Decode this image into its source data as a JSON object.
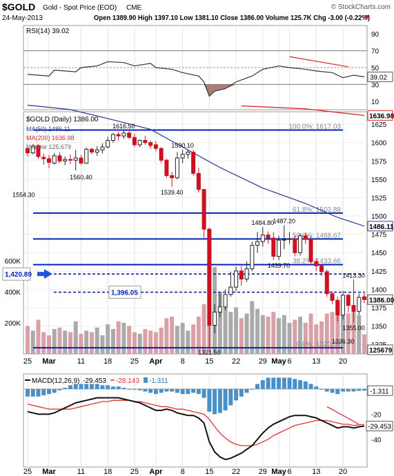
{
  "header": {
    "symbol": "$GOLD",
    "description": "Gold - Spot Price (EOD)",
    "exchange": "CME",
    "copyright": "© StockCharts.com",
    "date": "24-May-2013",
    "ohlc_line": "Open 1389.90  High 1397.10  Low 1381.10  Close 1386.00  Volume 125.7K  Chg -3.00 (-0.22%)",
    "chg_icon": "down-triangle-icon"
  },
  "colors": {
    "up": "#222222",
    "down": "#cc1122",
    "ma50": "#334499",
    "ma200": "#dd2222",
    "fib": "#0022bb",
    "macd_hist": "#4a90c8",
    "rsi_line": "#333333"
  },
  "chart_data": [
    {
      "type": "line",
      "name": "RSI",
      "legend": "RSI(14) 39.02",
      "last_value_label": "39.02",
      "ylim": [
        0,
        100
      ],
      "y_ticks": [
        10,
        30,
        50,
        70,
        90
      ],
      "ref_lines": [
        30,
        50,
        70
      ],
      "x": [
        "2013-02-25",
        "2013-03-01",
        "2013-03-04",
        "2013-03-08",
        "2013-03-11",
        "2013-03-14",
        "2013-03-18",
        "2013-03-21",
        "2013-03-25",
        "2013-03-28",
        "2013-04-01",
        "2013-04-04",
        "2013-04-08",
        "2013-04-11",
        "2013-04-12",
        "2013-04-15",
        "2013-04-16",
        "2013-04-18",
        "2013-04-22",
        "2013-04-25",
        "2013-04-29",
        "2013-05-02",
        "2013-05-06",
        "2013-05-09",
        "2013-05-13",
        "2013-05-16",
        "2013-05-20",
        "2013-05-22",
        "2013-05-24"
      ],
      "values": [
        42,
        40,
        47,
        45,
        50,
        52,
        57,
        56,
        52,
        55,
        50,
        48,
        44,
        40,
        33,
        16,
        22,
        25,
        33,
        40,
        48,
        52,
        50,
        48,
        46,
        44,
        38,
        41,
        39.02
      ],
      "annotations": [
        "red downtrend line near 50-70"
      ]
    },
    {
      "type": "candlestick",
      "name": "$GOLD (Daily)",
      "legend": "$GOLD (Daily) 1386.00",
      "ylim": [
        1312,
        1642
      ],
      "y_ticks": [
        1325,
        1350,
        1375,
        1400,
        1425,
        1450,
        1475,
        1500,
        1525,
        1550,
        1575,
        1600,
        1625
      ],
      "x_labels": [
        "25",
        "Mar",
        "11",
        "18",
        "25",
        "Apr",
        "8",
        "15",
        "22",
        "29",
        "May",
        "6",
        "13",
        "20"
      ],
      "candles": [
        {
          "d": "2013-02-25",
          "o": 1592,
          "h": 1596,
          "l": 1581,
          "c": 1586
        },
        {
          "d": "2013-02-26",
          "o": 1586,
          "h": 1598,
          "l": 1584,
          "c": 1595
        },
        {
          "d": "2013-02-27",
          "o": 1596,
          "h": 1598,
          "l": 1578,
          "c": 1581
        },
        {
          "d": "2013-02-28",
          "o": 1580,
          "h": 1585,
          "l": 1570,
          "c": 1578
        },
        {
          "d": "2013-03-01",
          "o": 1578,
          "h": 1583,
          "l": 1565,
          "c": 1573
        },
        {
          "d": "2013-03-04",
          "o": 1572,
          "h": 1586,
          "l": 1570,
          "c": 1582
        },
        {
          "d": "2013-03-05",
          "o": 1582,
          "h": 1587,
          "l": 1572,
          "c": 1575
        },
        {
          "d": "2013-03-06",
          "o": 1575,
          "h": 1581,
          "l": 1569,
          "c": 1577
        },
        {
          "d": "2013-03-07",
          "o": 1577,
          "h": 1584,
          "l": 1571,
          "c": 1576
        },
        {
          "d": "2013-03-08",
          "o": 1576,
          "h": 1590,
          "l": 1562,
          "c": 1579
        },
        {
          "d": "2013-03-11",
          "o": 1579,
          "h": 1583,
          "l": 1570,
          "c": 1572
        },
        {
          "d": "2013-03-12",
          "o": 1572,
          "h": 1593,
          "l": 1571,
          "c": 1591
        },
        {
          "d": "2013-03-13",
          "o": 1591,
          "h": 1593,
          "l": 1584,
          "c": 1587
        },
        {
          "d": "2013-03-14",
          "o": 1587,
          "h": 1595,
          "l": 1582,
          "c": 1590
        },
        {
          "d": "2013-03-15",
          "o": 1590,
          "h": 1599,
          "l": 1585,
          "c": 1594
        },
        {
          "d": "2013-03-18",
          "o": 1594,
          "h": 1608,
          "l": 1592,
          "c": 1603
        },
        {
          "d": "2013-03-19",
          "o": 1603,
          "h": 1613,
          "l": 1600,
          "c": 1611
        },
        {
          "d": "2013-03-20",
          "o": 1611,
          "h": 1615,
          "l": 1602,
          "c": 1609
        },
        {
          "d": "2013-03-21",
          "o": 1609,
          "h": 1616.5,
          "l": 1605,
          "c": 1613
        },
        {
          "d": "2013-03-22",
          "o": 1613,
          "h": 1616,
          "l": 1605,
          "c": 1607
        },
        {
          "d": "2013-03-25",
          "o": 1607,
          "h": 1612,
          "l": 1594,
          "c": 1597
        },
        {
          "d": "2013-03-26",
          "o": 1597,
          "h": 1604,
          "l": 1594,
          "c": 1603
        },
        {
          "d": "2013-03-27",
          "o": 1603,
          "h": 1609,
          "l": 1597,
          "c": 1600
        },
        {
          "d": "2013-03-28",
          "o": 1600,
          "h": 1603,
          "l": 1592,
          "c": 1596
        },
        {
          "d": "2013-04-01",
          "o": 1597,
          "h": 1602,
          "l": 1588,
          "c": 1592
        },
        {
          "d": "2013-04-02",
          "o": 1592,
          "h": 1594,
          "l": 1572,
          "c": 1576
        },
        {
          "d": "2013-04-03",
          "o": 1576,
          "h": 1578,
          "l": 1552,
          "c": 1555
        },
        {
          "d": "2013-04-04",
          "o": 1555,
          "h": 1560,
          "l": 1539.4,
          "c": 1552
        },
        {
          "d": "2013-04-05",
          "o": 1552,
          "h": 1587,
          "l": 1550,
          "c": 1579
        },
        {
          "d": "2013-04-08",
          "o": 1579,
          "h": 1590.1,
          "l": 1572,
          "c": 1584
        },
        {
          "d": "2013-04-09",
          "o": 1584,
          "h": 1590,
          "l": 1578,
          "c": 1587
        },
        {
          "d": "2013-04-10",
          "o": 1587,
          "h": 1590,
          "l": 1555,
          "c": 1558
        },
        {
          "d": "2013-04-11",
          "o": 1558,
          "h": 1566,
          "l": 1532,
          "c": 1536
        },
        {
          "d": "2013-04-12",
          "o": 1536,
          "h": 1537,
          "l": 1470,
          "c": 1482
        },
        {
          "d": "2013-04-15",
          "o": 1482,
          "h": 1484,
          "l": 1321.5,
          "c": 1351
        },
        {
          "d": "2013-04-16",
          "o": 1351,
          "h": 1380,
          "l": 1340,
          "c": 1369
        },
        {
          "d": "2013-04-17",
          "o": 1369,
          "h": 1394,
          "l": 1362,
          "c": 1376
        },
        {
          "d": "2013-04-18",
          "o": 1376,
          "h": 1400,
          "l": 1372,
          "c": 1393
        },
        {
          "d": "2013-04-19",
          "o": 1393,
          "h": 1424,
          "l": 1390,
          "c": 1403
        },
        {
          "d": "2013-04-22",
          "o": 1403,
          "h": 1431,
          "l": 1397,
          "c": 1425
        },
        {
          "d": "2013-04-23",
          "o": 1425,
          "h": 1432,
          "l": 1405,
          "c": 1414
        },
        {
          "d": "2013-04-24",
          "o": 1414,
          "h": 1438,
          "l": 1410,
          "c": 1428
        },
        {
          "d": "2013-04-25",
          "o": 1428,
          "h": 1465,
          "l": 1425,
          "c": 1460
        },
        {
          "d": "2013-04-26",
          "o": 1460,
          "h": 1478,
          "l": 1450,
          "c": 1465
        },
        {
          "d": "2013-04-29",
          "o": 1465,
          "h": 1484.8,
          "l": 1458,
          "c": 1474
        },
        {
          "d": "2013-04-30",
          "o": 1474,
          "h": 1479,
          "l": 1462,
          "c": 1470
        },
        {
          "d": "2013-05-01",
          "o": 1470,
          "h": 1478,
          "l": 1440,
          "c": 1445
        },
        {
          "d": "2013-05-02",
          "o": 1445,
          "h": 1473,
          "l": 1439.7,
          "c": 1467
        },
        {
          "d": "2013-05-03",
          "o": 1467,
          "h": 1487.2,
          "l": 1455,
          "c": 1468
        },
        {
          "d": "2013-05-06",
          "o": 1468,
          "h": 1478,
          "l": 1462,
          "c": 1469
        },
        {
          "d": "2013-05-07",
          "o": 1469,
          "h": 1473,
          "l": 1445,
          "c": 1450
        },
        {
          "d": "2013-05-08",
          "o": 1450,
          "h": 1476,
          "l": 1446,
          "c": 1473
        },
        {
          "d": "2013-05-09",
          "o": 1473,
          "h": 1477,
          "l": 1462,
          "c": 1468
        },
        {
          "d": "2013-05-10",
          "o": 1468,
          "h": 1472,
          "l": 1435,
          "c": 1438
        },
        {
          "d": "2013-05-13",
          "o": 1438,
          "h": 1442,
          "l": 1425,
          "c": 1432
        },
        {
          "d": "2013-05-14",
          "o": 1432,
          "h": 1435,
          "l": 1418,
          "c": 1424
        },
        {
          "d": "2013-05-15",
          "o": 1424,
          "h": 1427,
          "l": 1390,
          "c": 1394
        },
        {
          "d": "2013-05-16",
          "o": 1394,
          "h": 1397,
          "l": 1380,
          "c": 1385
        },
        {
          "d": "2013-05-17",
          "o": 1385,
          "h": 1390,
          "l": 1356,
          "c": 1365
        },
        {
          "d": "2013-05-20",
          "o": 1365,
          "h": 1398,
          "l": 1359,
          "c": 1392
        },
        {
          "d": "2013-05-21",
          "o": 1392,
          "h": 1394,
          "l": 1368,
          "c": 1378
        },
        {
          "d": "2013-05-22",
          "o": 1378,
          "h": 1413.3,
          "l": 1355,
          "c": 1370
        },
        {
          "d": "2013-05-23",
          "o": 1370,
          "h": 1394,
          "l": 1365,
          "c": 1389
        },
        {
          "d": "2013-05-24",
          "o": 1389.9,
          "h": 1397.1,
          "l": 1381.1,
          "c": 1386
        }
      ],
      "ma50": {
        "legend": "MA(50) 1486.11",
        "label": "1486.11",
        "points": [
          [
            0,
            1651
          ],
          [
            8,
            1645
          ],
          [
            16,
            1631
          ],
          [
            23,
            1618
          ],
          [
            30,
            1590
          ],
          [
            36,
            1566
          ],
          [
            44,
            1538
          ],
          [
            52,
            1517
          ],
          [
            58,
            1498
          ],
          [
            63,
            1486.11
          ]
        ]
      },
      "ma200": {
        "legend": "MA(200) 1636.98",
        "label": "1636.98",
        "points": [
          [
            40,
            1650
          ],
          [
            52,
            1646
          ],
          [
            63,
            1636.98
          ]
        ]
      },
      "fib_levels": [
        {
          "label": "100.0%: 1617.03",
          "value": 1617.03
        },
        {
          "label": "61.8%: 1503.88",
          "value": 1503.88
        },
        {
          "label": "50.0%: 1468.67",
          "value": 1468.67
        },
        {
          "label": "38.2%: 1433.66",
          "value": 1433.66
        },
        {
          "label": "0.0%: 1320.34",
          "value": 1320.34
        }
      ],
      "dashed_levels": [
        {
          "label": "1,420.89",
          "value": 1420.89,
          "arrow": true
        },
        {
          "label": "1,396.05",
          "value": 1396.05,
          "arrow": false
        }
      ],
      "price_labels": [
        {
          "text": "1616.50",
          "value": 1616.5
        },
        {
          "text": "1590.10",
          "value": 1590.1
        },
        {
          "text": "1554.30",
          "value": 1554.3
        },
        {
          "text": "1560.40",
          "value": 1560.4
        },
        {
          "text": "1539.40",
          "value": 1539.4
        },
        {
          "text": "1484.80",
          "value": 1484.8
        },
        {
          "text": "1487.20",
          "value": 1487.2
        },
        {
          "text": "1439.70",
          "value": 1439.7
        },
        {
          "text": "1413.30",
          "value": 1413.3
        },
        {
          "text": "1355.00",
          "value": 1355.0
        },
        {
          "text": "1321.50",
          "value": 1321.5
        },
        {
          "text": "1336.30",
          "value": 1336.3
        }
      ],
      "last_price_label": "1386.00",
      "volume": {
        "legend": "Volume 125,679",
        "last_label": "125679",
        "y_ticks": [
          "200K",
          "400K",
          "600K"
        ],
        "ylim": [
          0,
          800000
        ],
        "values": [
          180,
          150,
          220,
          140,
          120,
          160,
          170,
          150,
          140,
          210,
          130,
          150,
          140,
          170,
          120,
          190,
          160,
          210,
          200,
          180,
          140,
          130,
          160,
          150,
          140,
          170,
          230,
          240,
          180,
          200,
          150,
          190,
          240,
          320,
          760,
          560,
          400,
          300,
          270,
          300,
          230,
          260,
          340,
          290,
          250,
          240,
          270,
          230,
          250,
          200,
          220,
          240,
          200,
          260,
          190,
          210,
          260,
          270,
          330,
          310,
          260,
          300,
          250,
          126
        ]
      }
    },
    {
      "type": "line",
      "name": "MACD",
      "legend": "MACD(12,26,9)",
      "macd_value": "-29.453",
      "signal_value": "-28.143",
      "hist_value": "-1.311",
      "ylim": [
        -62,
        12
      ],
      "y_ticks": [
        -40,
        -20
      ],
      "hist_label": "-1.311",
      "macd_label": "-29.453",
      "macd": [
        -18,
        -19,
        -20,
        -20,
        -20,
        -19,
        -17,
        -15,
        -13,
        -11,
        -10,
        -9,
        -8,
        -7,
        -7,
        -7,
        -7,
        -7,
        -8,
        -9,
        -10,
        -11,
        -13,
        -15,
        -17,
        -17,
        -16,
        -17,
        -19,
        -20,
        -21,
        -21,
        -23,
        -27,
        -42,
        -50,
        -54,
        -56,
        -55,
        -53,
        -51,
        -48,
        -45,
        -40,
        -35,
        -31,
        -28,
        -26,
        -24,
        -22,
        -21,
        -21,
        -21,
        -22,
        -23,
        -25,
        -27,
        -29,
        -31,
        -30,
        -30,
        -31,
        -30,
        -29.453
      ],
      "signal": [
        -12,
        -13,
        -14,
        -15,
        -16,
        -16,
        -16,
        -16,
        -16,
        -15,
        -14,
        -13,
        -12,
        -11,
        -10,
        -10,
        -9,
        -9,
        -9,
        -9,
        -10,
        -10,
        -11,
        -12,
        -13,
        -14,
        -14,
        -15,
        -16,
        -16,
        -17,
        -18,
        -19,
        -20,
        -24,
        -30,
        -35,
        -39,
        -42,
        -44,
        -45,
        -45,
        -45,
        -44,
        -42,
        -40,
        -37,
        -35,
        -33,
        -31,
        -29,
        -28,
        -27,
        -26,
        -25,
        -25,
        -25,
        -26,
        -27,
        -28,
        -28,
        -29,
        -28.5,
        -28.143
      ],
      "annotations": [
        "red downtrend line near -20"
      ]
    }
  ],
  "rsi_side_labels": [
    "90",
    "70",
    "50",
    "30",
    "10"
  ],
  "x_axis_labels": [
    "25",
    "Mar",
    "11",
    "18",
    "25",
    "Apr",
    "8",
    "15",
    "22",
    "29",
    "May",
    "6",
    "13",
    "20"
  ]
}
